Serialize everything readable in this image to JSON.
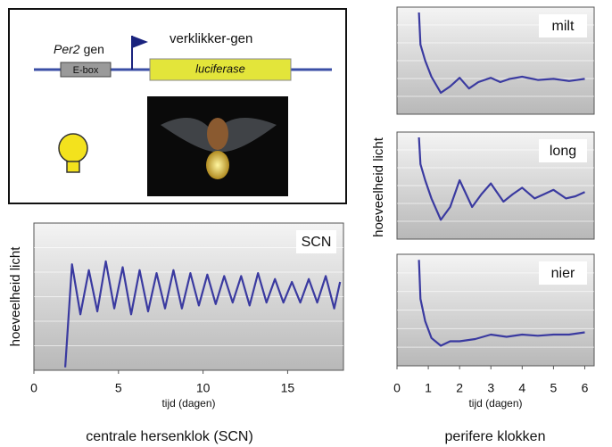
{
  "diagram": {
    "gene_name": "Per2",
    "gene_suffix": "gen",
    "ebox": "E-box",
    "reporter": "verklikker-gen",
    "luciferase": "luciferase"
  },
  "figure": {
    "left_caption": "centrale hersenklok (SCN)",
    "right_caption": "perifere klokken",
    "right_ylabel": "hoeveelheid licht"
  },
  "chart_data": [
    {
      "type": "line",
      "title": "SCN",
      "color": "#3a3aa0",
      "xlabel": "tijd (dagen)",
      "ylabel": "hoeveelheid licht",
      "xlim": [
        0,
        18.3
      ],
      "ylim": [
        0,
        100
      ],
      "xticks": [
        0,
        5,
        10,
        15
      ],
      "x": [
        1.85,
        2.25,
        2.75,
        3.25,
        3.75,
        4.25,
        4.75,
        5.25,
        5.75,
        6.25,
        6.75,
        7.25,
        7.75,
        8.25,
        8.75,
        9.25,
        9.75,
        10.25,
        10.75,
        11.25,
        11.75,
        12.25,
        12.75,
        13.25,
        13.75,
        14.25,
        14.75,
        15.25,
        15.75,
        16.25,
        16.75,
        17.25,
        17.75,
        18.1
      ],
      "values": [
        2,
        72,
        38,
        68,
        40,
        74,
        42,
        70,
        38,
        68,
        40,
        66,
        42,
        68,
        42,
        66,
        44,
        65,
        45,
        64,
        46,
        64,
        44,
        66,
        46,
        62,
        46,
        60,
        46,
        62,
        46,
        64,
        42,
        60
      ]
    },
    {
      "type": "line",
      "title": "milt",
      "color": "#3a3aa0",
      "xlim": [
        0,
        6.3
      ],
      "ylim": [
        0,
        100
      ],
      "x": [
        0.7,
        0.75,
        0.9,
        1.1,
        1.4,
        1.7,
        2,
        2.3,
        2.6,
        3,
        3.3,
        3.6,
        4,
        4.5,
        5,
        5.5,
        6
      ],
      "values": [
        95,
        65,
        50,
        35,
        20,
        26,
        34,
        24,
        30,
        34,
        30,
        33,
        35,
        32,
        33,
        31,
        33
      ]
    },
    {
      "type": "line",
      "title": "long",
      "color": "#3a3aa0",
      "xlim": [
        0,
        6.3
      ],
      "ylim": [
        0,
        100
      ],
      "x": [
        0.7,
        0.75,
        0.9,
        1.1,
        1.4,
        1.7,
        2,
        2.4,
        2.7,
        3,
        3.4,
        3.7,
        4,
        4.4,
        4.7,
        5,
        5.4,
        5.7,
        6
      ],
      "values": [
        95,
        70,
        55,
        38,
        18,
        30,
        55,
        30,
        42,
        52,
        35,
        42,
        48,
        38,
        42,
        46,
        38,
        40,
        44
      ]
    },
    {
      "type": "line",
      "title": "nier",
      "color": "#3a3aa0",
      "xlabel": "tijd (dagen)",
      "xlim": [
        0,
        6.3
      ],
      "ylim": [
        0,
        100
      ],
      "xticks": [
        0,
        1,
        2,
        3,
        4,
        5,
        6
      ],
      "x": [
        0.7,
        0.75,
        0.9,
        1.1,
        1.4,
        1.7,
        2,
        2.5,
        3,
        3.5,
        4,
        4.5,
        5,
        5.5,
        6
      ],
      "values": [
        95,
        60,
        40,
        25,
        18,
        22,
        22,
        24,
        28,
        26,
        28,
        27,
        28,
        28,
        30
      ]
    }
  ]
}
